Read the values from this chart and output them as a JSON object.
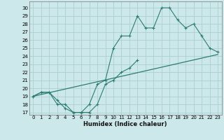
{
  "xlabel": "Humidex (Indice chaleur)",
  "x_ticks": [
    0,
    1,
    2,
    3,
    4,
    5,
    6,
    7,
    8,
    9,
    10,
    11,
    12,
    13,
    14,
    15,
    16,
    17,
    18,
    19,
    20,
    21,
    22,
    23
  ],
  "x_tick_labels": [
    "0",
    "1",
    "2",
    "3",
    "4",
    "5",
    "6",
    "7",
    "8",
    "9",
    "10",
    "11",
    "12",
    "13",
    "14",
    "15",
    "16",
    "17",
    "18",
    "19",
    "20",
    "21",
    "22",
    "23"
  ],
  "y_ticks": [
    17,
    18,
    19,
    20,
    21,
    22,
    23,
    24,
    25,
    26,
    27,
    28,
    29,
    30
  ],
  "ylim": [
    16.7,
    30.8
  ],
  "xlim": [
    -0.5,
    23.5
  ],
  "bg_color": "#cce8ea",
  "grid_color": "#aacfcf",
  "line_color": "#2d7c72",
  "upper_x": [
    0,
    1,
    2,
    3,
    4,
    5,
    6,
    7,
    8,
    9,
    10,
    11,
    12,
    13,
    14,
    15,
    16,
    17,
    18,
    19,
    20,
    21,
    22,
    23
  ],
  "upper_y": [
    19,
    19.5,
    19.5,
    18.5,
    17.5,
    17,
    17,
    18,
    20.5,
    21,
    25,
    26.5,
    26.5,
    29,
    27.5,
    27.5,
    30,
    30,
    28.5,
    27.5,
    28,
    26.5,
    25,
    24.5
  ],
  "lower_x": [
    0,
    1,
    2,
    3,
    4,
    5,
    6,
    7,
    8,
    9,
    10,
    11,
    12,
    13
  ],
  "lower_y": [
    19,
    19.5,
    19.5,
    18,
    18,
    17,
    17,
    17,
    18,
    20.5,
    21,
    22,
    22.5,
    23.5
  ],
  "trend_x": [
    0,
    23
  ],
  "trend_y": [
    19,
    24.2
  ]
}
